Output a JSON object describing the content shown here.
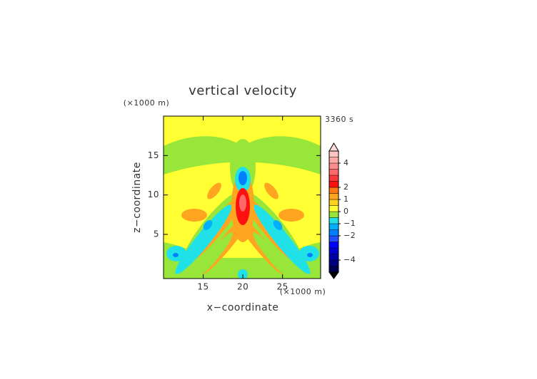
{
  "chart_data": {
    "type": "contour",
    "title": "vertical velocity",
    "time_label": "3360 s",
    "x_label": "x−coordinate",
    "y_label": "z−coordinate",
    "x_unit": "(×1000 m)",
    "y_unit": "(×1000 m)",
    "xlim": [
      10,
      29.8
    ],
    "ylim": [
      -0.6,
      20
    ],
    "xticks": [
      15,
      20,
      25
    ],
    "yticks": [
      5,
      10,
      15
    ],
    "colorbar": {
      "levels": [
        -5,
        -4.5,
        -4,
        -3.5,
        -3,
        -2.5,
        -2,
        -1.5,
        -1,
        -0.5,
        0,
        0.5,
        1,
        1.5,
        2,
        2.5,
        3,
        3.5,
        4,
        4.5,
        5
      ],
      "colors": [
        "#000050",
        "#000080",
        "#0000a8",
        "#0000d0",
        "#0000ff",
        "#2050ff",
        "#0080ff",
        "#00b0ff",
        "#20e0e8",
        "#99e63a",
        "#ffff33",
        "#ffd21e",
        "#ffa520",
        "#ff7a10",
        "#ff1010",
        "#ff3838",
        "#ff6868",
        "#ff8c8c",
        "#ffa8a8",
        "#ffc4c4"
      ],
      "extend_colors": [
        "#000000",
        "#ffdcdc"
      ],
      "ticks": [
        {
          "value": -4,
          "label": "−4"
        },
        {
          "value": -2,
          "label": "−2"
        },
        {
          "value": -1,
          "label": "−1"
        },
        0,
        1,
        2,
        4
      ]
    }
  }
}
